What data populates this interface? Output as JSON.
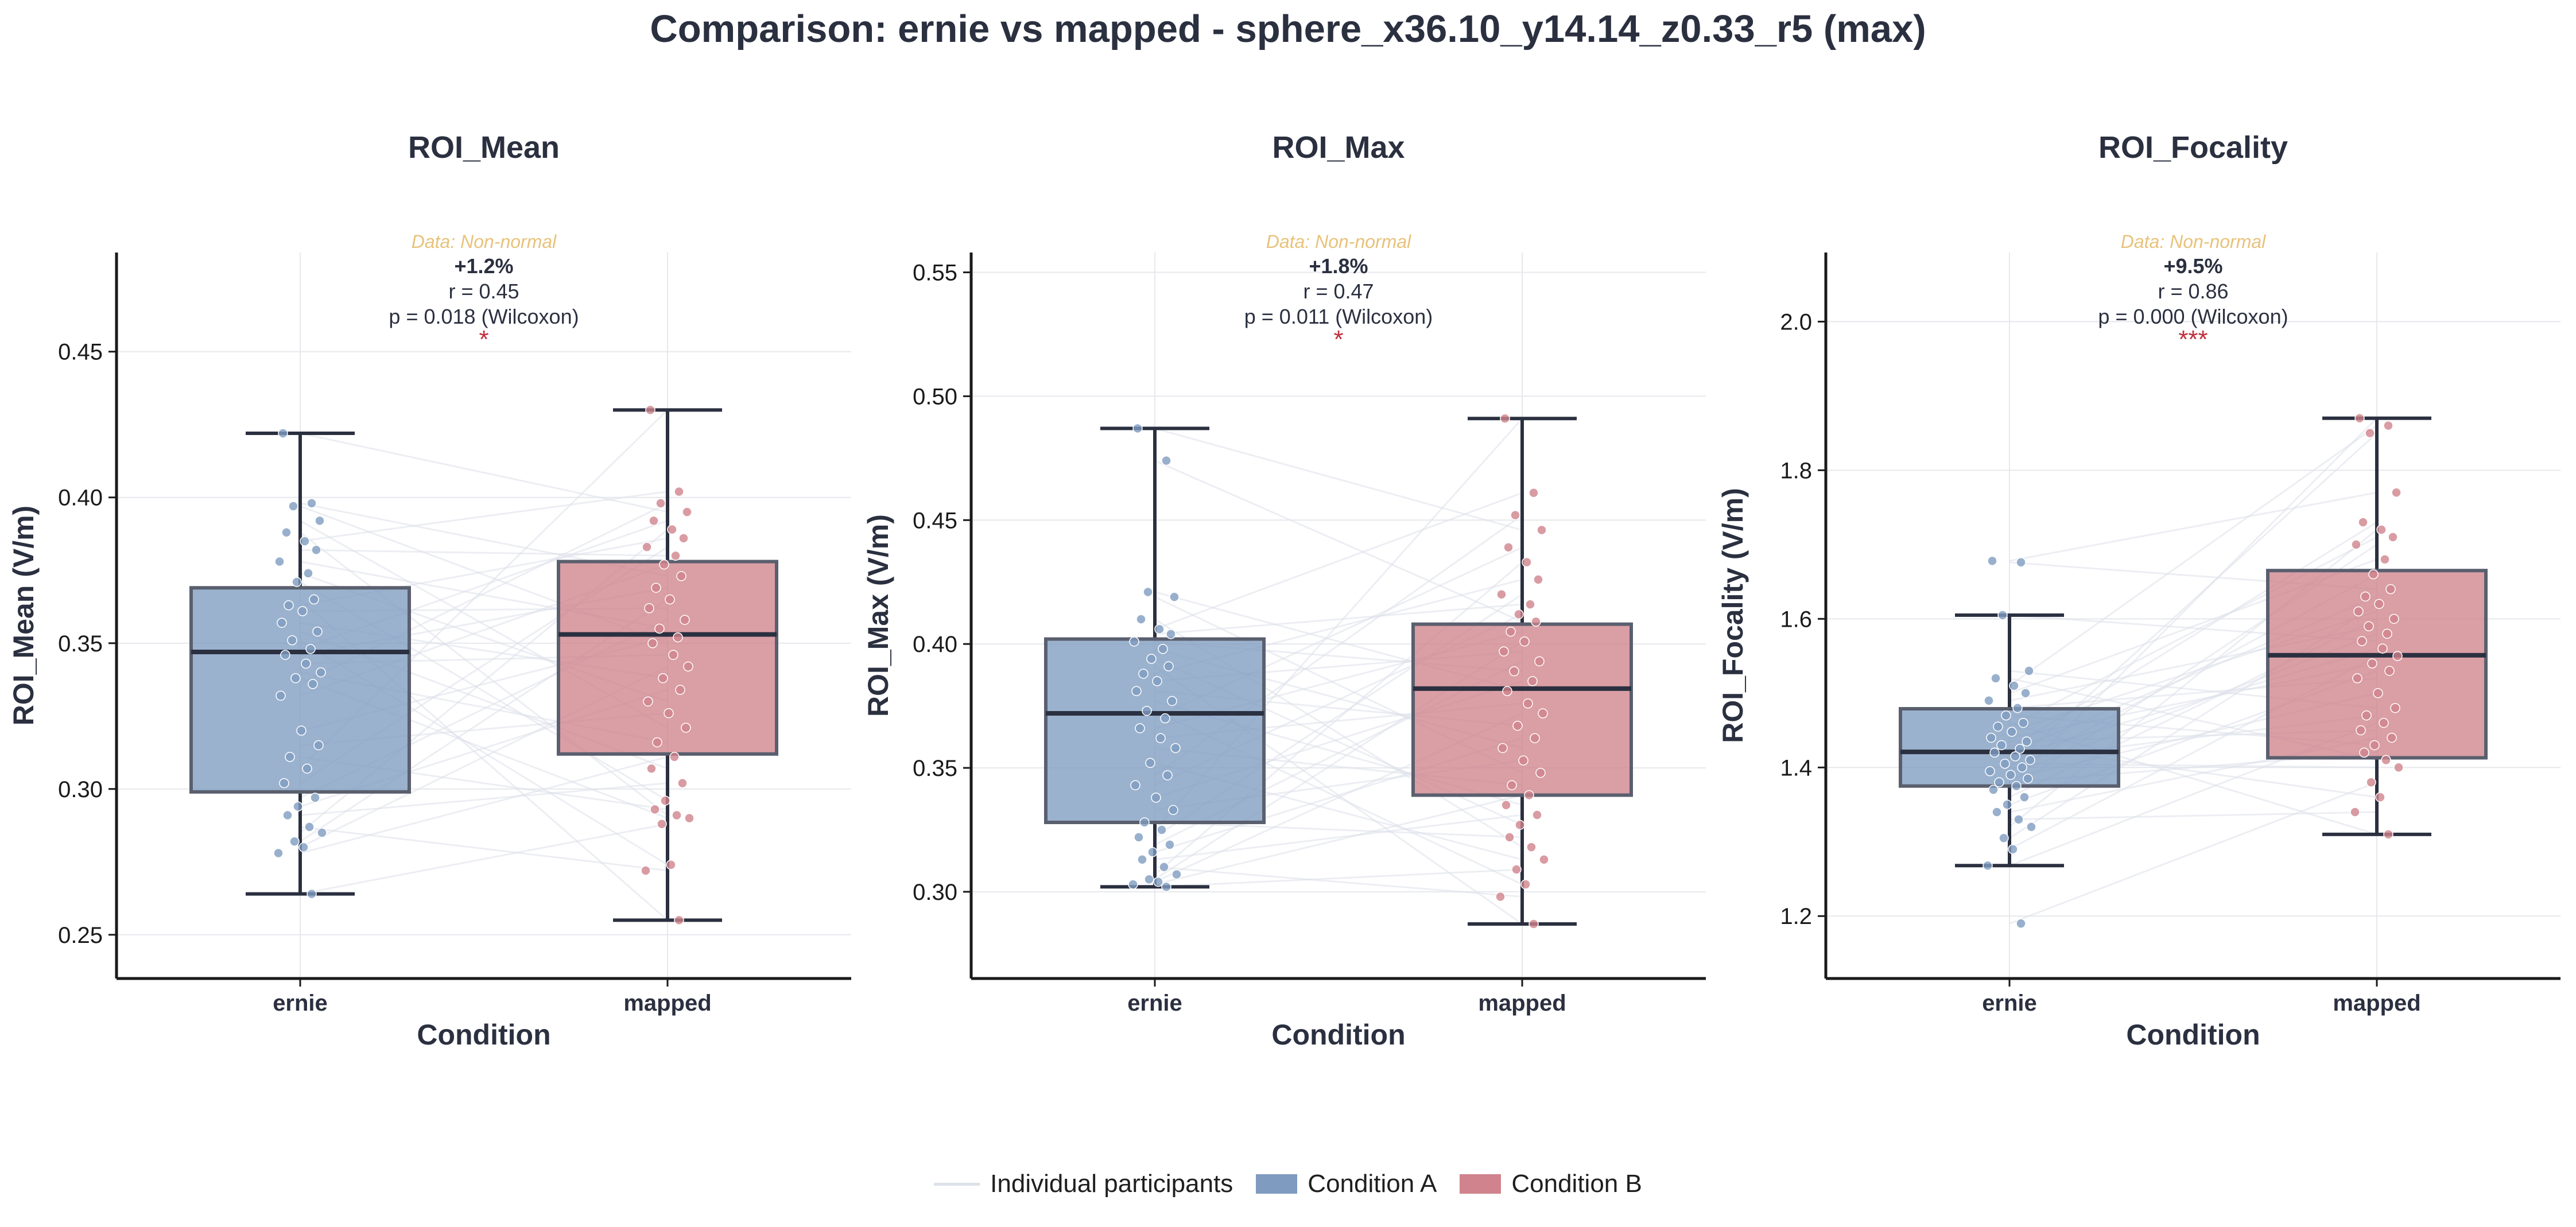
{
  "colors": {
    "condition_a": "#7f9cc0",
    "condition_b": "#d0838c",
    "median": "#2b3040",
    "whisker": "#2b3040",
    "pair_line": "#dde1ea",
    "normality": "#e8c27a",
    "significance": "#c0303c",
    "text": "#2b3040"
  },
  "chart_data": {
    "type": "box",
    "title": "Comparison: ernie vs mapped - sphere_x36.10_y14.14_z0.33_r5 (max)",
    "legend": {
      "placement": "bottom-center",
      "entries": [
        {
          "label": "Individual participants",
          "kind": "line",
          "color": "#dde1ea"
        },
        {
          "label": "Condition A",
          "kind": "box",
          "color": "#7f9cc0"
        },
        {
          "label": "Condition B",
          "kind": "box",
          "color": "#d0838c"
        }
      ]
    },
    "panels": [
      {
        "title": "ROI_Mean",
        "ylabel": "ROI_Mean (V/m)",
        "xlabel": "Condition",
        "categories": [
          "ernie",
          "mapped"
        ],
        "ylim": [
          0.235,
          0.484
        ],
        "yticks": [
          0.25,
          0.3,
          0.35,
          0.4,
          0.45
        ],
        "ytick_labels": [
          "0.25",
          "0.30",
          "0.35",
          "0.40",
          "0.45"
        ],
        "grid": true,
        "annotation": {
          "normality": "Data: Non-normal",
          "change": "+1.2%",
          "effect": "r = 0.45",
          "pvalue": "p = 0.018 (Wilcoxon)",
          "stars": "*"
        },
        "boxes": [
          {
            "name": "ernie",
            "whisker_low": 0.264,
            "q1": 0.299,
            "median": 0.347,
            "q3": 0.369,
            "whisker_high": 0.422
          },
          {
            "name": "mapped",
            "whisker_low": 0.255,
            "q1": 0.312,
            "median": 0.353,
            "q3": 0.378,
            "whisker_high": 0.43
          }
        ],
        "series": [
          {
            "name": "ernie",
            "values": [
              0.422,
              0.398,
              0.397,
              0.392,
              0.388,
              0.385,
              0.382,
              0.378,
              0.374,
              0.371,
              0.365,
              0.363,
              0.361,
              0.357,
              0.354,
              0.351,
              0.348,
              0.346,
              0.343,
              0.34,
              0.338,
              0.336,
              0.332,
              0.32,
              0.315,
              0.311,
              0.307,
              0.302,
              0.297,
              0.294,
              0.291,
              0.287,
              0.285,
              0.282,
              0.28,
              0.278,
              0.264
            ]
          },
          {
            "name": "mapped",
            "values": [
              0.43,
              0.402,
              0.398,
              0.395,
              0.392,
              0.389,
              0.386,
              0.383,
              0.38,
              0.377,
              0.373,
              0.369,
              0.365,
              0.362,
              0.358,
              0.355,
              0.352,
              0.35,
              0.346,
              0.342,
              0.338,
              0.334,
              0.33,
              0.326,
              0.321,
              0.316,
              0.311,
              0.307,
              0.302,
              0.296,
              0.293,
              0.291,
              0.29,
              0.288,
              0.274,
              0.272,
              0.255
            ]
          }
        ]
      },
      {
        "title": "ROI_Max",
        "ylabel": "ROI_Max (V/m)",
        "xlabel": "Condition",
        "categories": [
          "ernie",
          "mapped"
        ],
        "ylim": [
          0.265,
          0.558
        ],
        "yticks": [
          0.3,
          0.35,
          0.4,
          0.45,
          0.5,
          0.55
        ],
        "ytick_labels": [
          "0.30",
          "0.35",
          "0.40",
          "0.45",
          "0.50",
          "0.55"
        ],
        "grid": true,
        "annotation": {
          "normality": "Data: Non-normal",
          "change": "+1.8%",
          "effect": "r = 0.47",
          "pvalue": "p = 0.011 (Wilcoxon)",
          "stars": "*"
        },
        "boxes": [
          {
            "name": "ernie",
            "whisker_low": 0.302,
            "q1": 0.328,
            "median": 0.372,
            "q3": 0.402,
            "whisker_high": 0.487
          },
          {
            "name": "mapped",
            "whisker_low": 0.287,
            "q1": 0.339,
            "median": 0.382,
            "q3": 0.408,
            "whisker_high": 0.491
          }
        ],
        "series": [
          {
            "name": "ernie",
            "values": [
              0.487,
              0.474,
              0.421,
              0.419,
              0.41,
              0.406,
              0.404,
              0.401,
              0.398,
              0.394,
              0.391,
              0.388,
              0.385,
              0.381,
              0.377,
              0.373,
              0.37,
              0.366,
              0.362,
              0.358,
              0.352,
              0.347,
              0.343,
              0.338,
              0.333,
              0.328,
              0.325,
              0.322,
              0.319,
              0.316,
              0.313,
              0.31,
              0.307,
              0.305,
              0.304,
              0.303,
              0.302
            ]
          },
          {
            "name": "mapped",
            "values": [
              0.491,
              0.461,
              0.452,
              0.446,
              0.439,
              0.433,
              0.426,
              0.42,
              0.416,
              0.412,
              0.409,
              0.405,
              0.401,
              0.397,
              0.393,
              0.389,
              0.385,
              0.381,
              0.376,
              0.372,
              0.367,
              0.362,
              0.358,
              0.353,
              0.348,
              0.343,
              0.339,
              0.335,
              0.331,
              0.327,
              0.322,
              0.318,
              0.313,
              0.309,
              0.303,
              0.298,
              0.287
            ]
          }
        ]
      },
      {
        "title": "ROI_Focality",
        "ylabel": "ROI_Focality (V/m)",
        "xlabel": "Condition",
        "categories": [
          "ernie",
          "mapped"
        ],
        "ylim": [
          1.116,
          2.093
        ],
        "yticks": [
          1.2,
          1.4,
          1.6,
          1.8,
          2.0
        ],
        "ytick_labels": [
          "1.2",
          "1.4",
          "1.6",
          "1.8",
          "2.0"
        ],
        "grid": true,
        "annotation": {
          "normality": "Data: Non-normal",
          "change": "+9.5%",
          "effect": "r = 0.86",
          "pvalue": "p = 0.000 (Wilcoxon)",
          "stars": "***"
        },
        "boxes": [
          {
            "name": "ernie",
            "whisker_low": 1.268,
            "q1": 1.375,
            "median": 1.421,
            "q3": 1.479,
            "whisker_high": 1.605
          },
          {
            "name": "mapped",
            "whisker_low": 1.31,
            "q1": 1.413,
            "median": 1.551,
            "q3": 1.665,
            "whisker_high": 1.87
          }
        ],
        "series": [
          {
            "name": "ernie",
            "values": [
              1.678,
              1.676,
              1.605,
              1.53,
              1.52,
              1.51,
              1.5,
              1.49,
              1.48,
              1.47,
              1.46,
              1.455,
              1.448,
              1.44,
              1.435,
              1.43,
              1.425,
              1.42,
              1.415,
              1.41,
              1.405,
              1.4,
              1.395,
              1.39,
              1.385,
              1.38,
              1.375,
              1.37,
              1.36,
              1.35,
              1.34,
              1.33,
              1.32,
              1.305,
              1.29,
              1.268,
              1.19
            ]
          },
          {
            "name": "mapped",
            "values": [
              1.87,
              1.86,
              1.85,
              1.77,
              1.73,
              1.72,
              1.71,
              1.7,
              1.68,
              1.66,
              1.64,
              1.63,
              1.62,
              1.61,
              1.6,
              1.59,
              1.58,
              1.57,
              1.56,
              1.55,
              1.54,
              1.53,
              1.52,
              1.5,
              1.48,
              1.47,
              1.46,
              1.45,
              1.44,
              1.43,
              1.42,
              1.41,
              1.4,
              1.38,
              1.36,
              1.34,
              1.31
            ]
          }
        ]
      }
    ]
  }
}
